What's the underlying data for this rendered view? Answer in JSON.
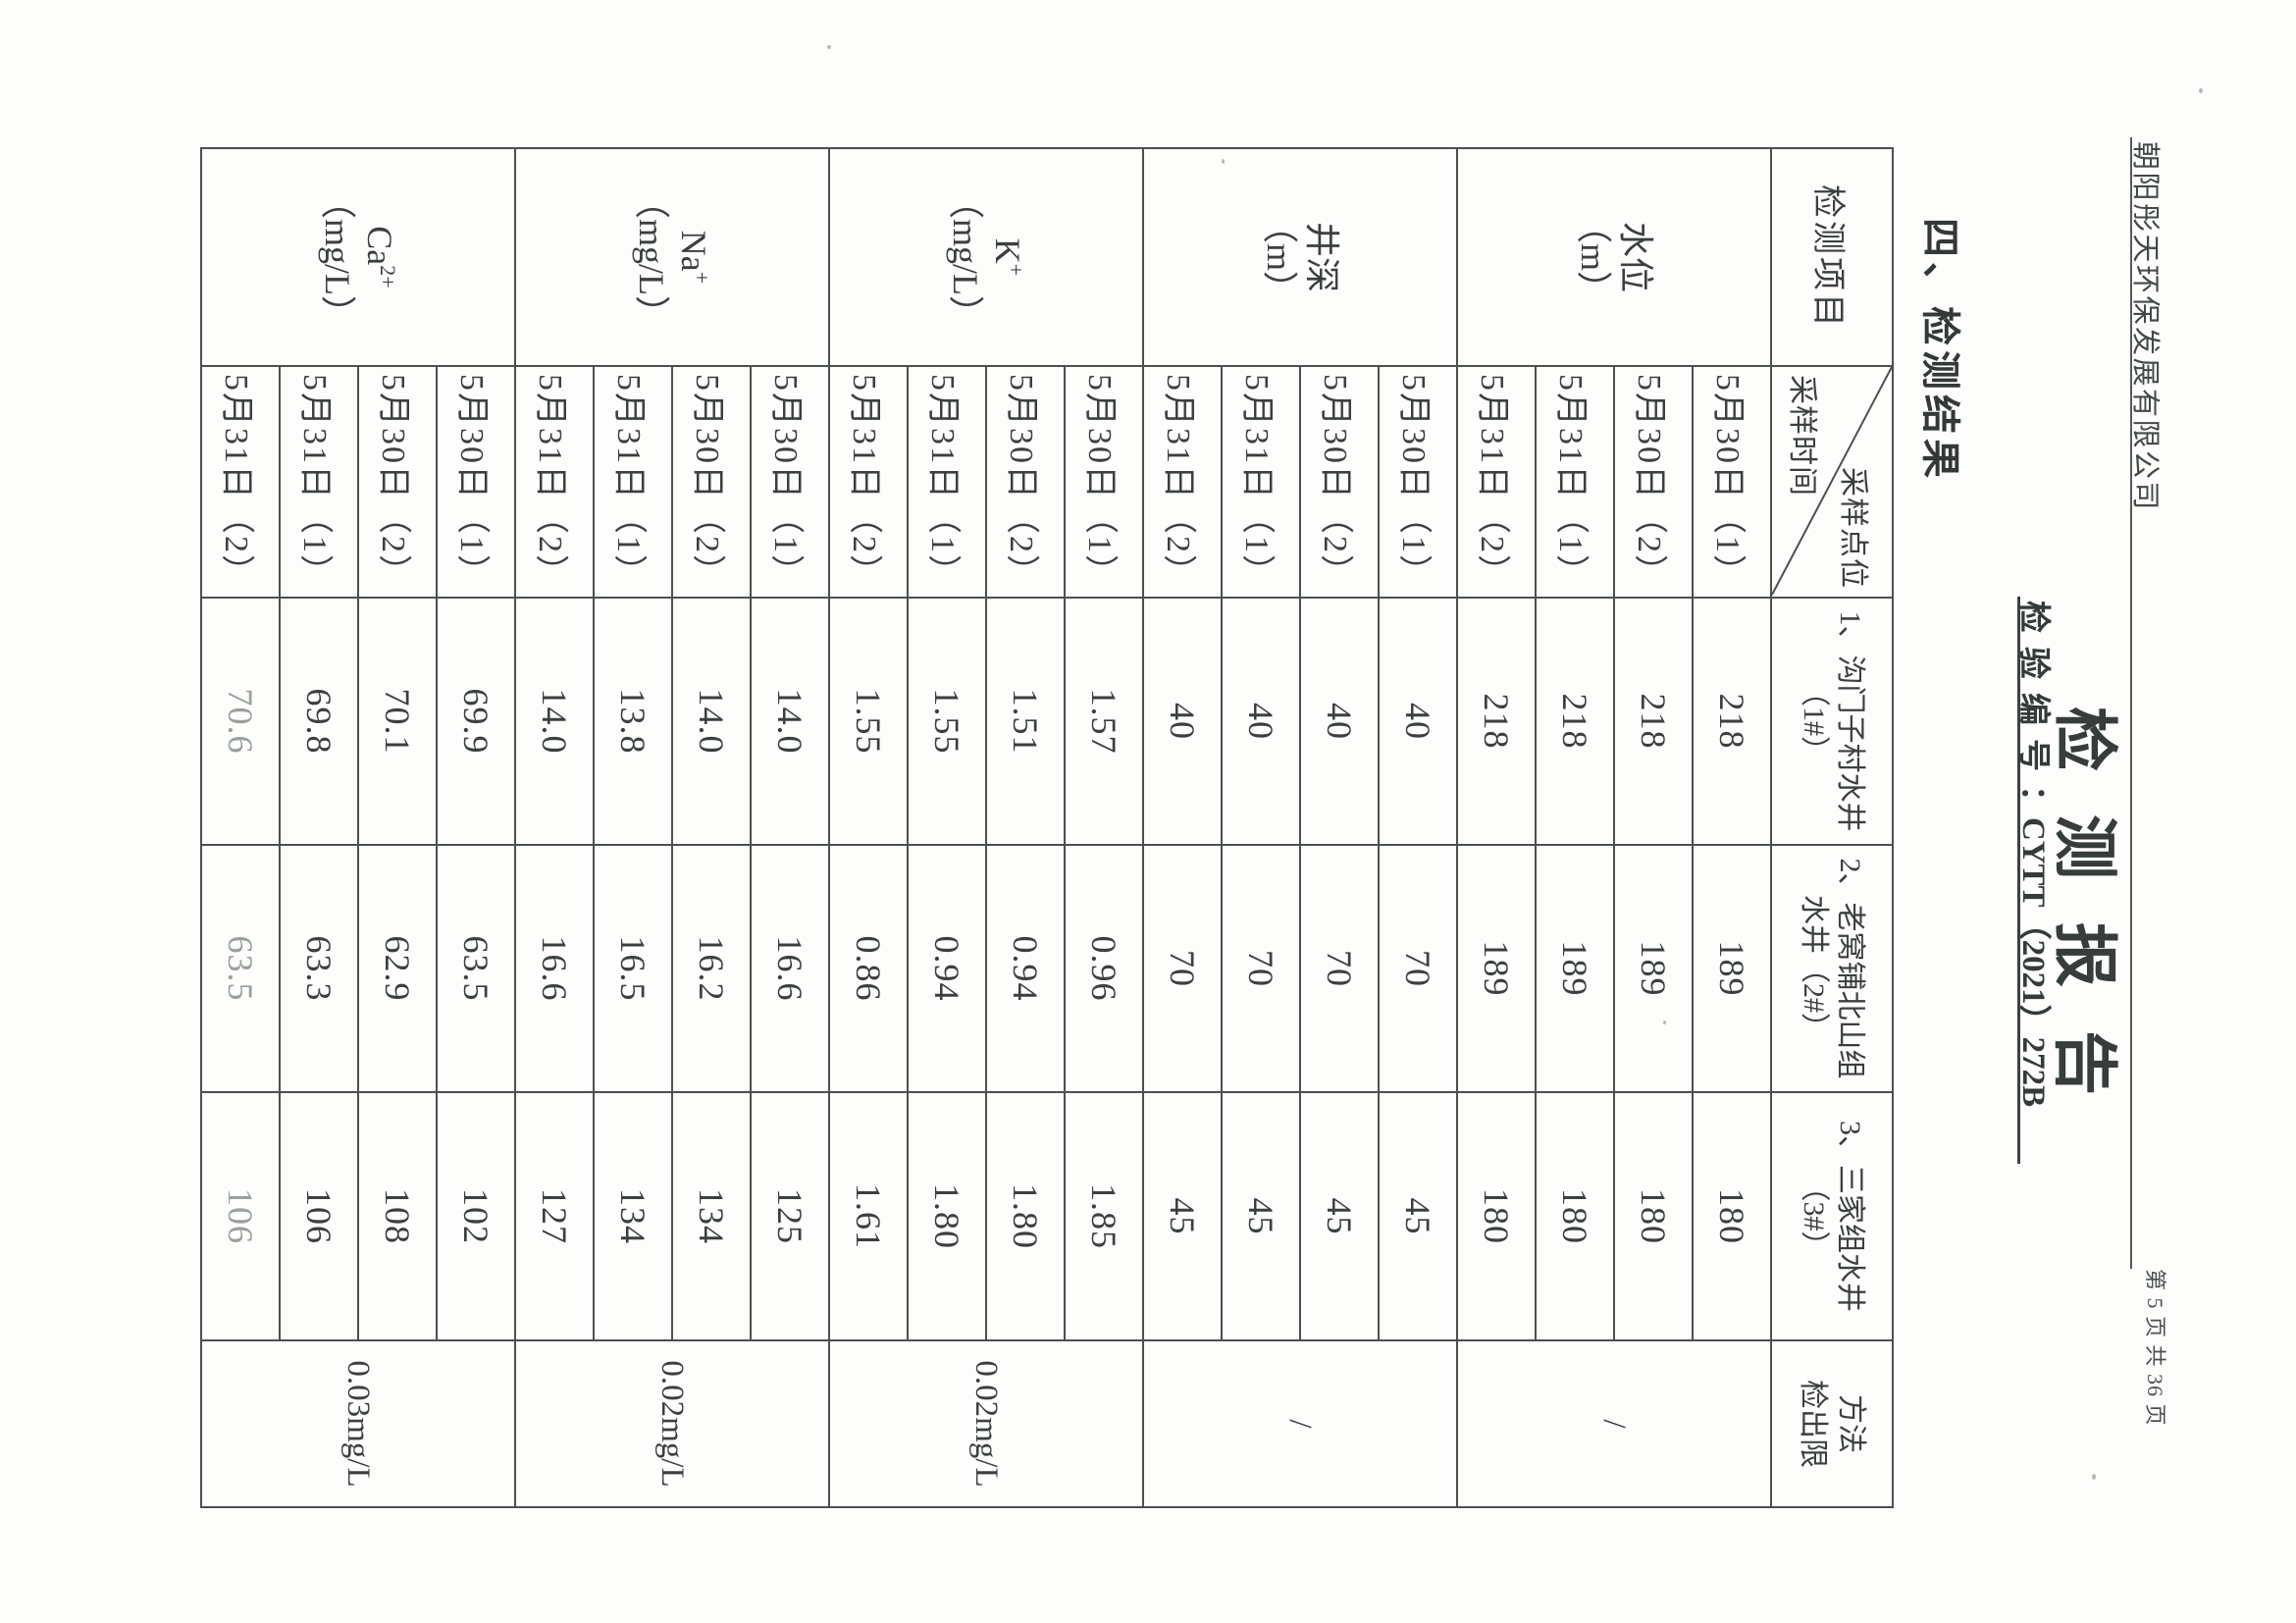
{
  "header": {
    "company": "朝阳彤天环保发展有限公司",
    "page_info": "第 5 页   共 36 页"
  },
  "title": "检测报告",
  "report_no": {
    "label": "检验编号",
    "colon": "：",
    "value": "CYTT（2021）272B"
  },
  "section_heading": "四、检测结果",
  "table": {
    "header": {
      "item_col": "检测项目",
      "corner_top": "采样点位",
      "corner_bottom": "采样时间",
      "site_cols": [
        [
          "1、沟门子村水井",
          "（1#）"
        ],
        [
          "2、老窝铺北山组",
          "水井（2#）"
        ],
        [
          "3、三家组水井",
          "（3#）"
        ]
      ],
      "limit_col": [
        "方法",
        "检出限"
      ]
    },
    "times": [
      "5月30日（1）",
      "5月30日（2）",
      "5月31日（1）",
      "5月31日（2）"
    ],
    "groups": [
      {
        "name": "水位",
        "sup": "",
        "unit": "（m）",
        "values": [
          [
            "218",
            "189",
            "180"
          ],
          [
            "218",
            "189",
            "180"
          ],
          [
            "218",
            "189",
            "180"
          ],
          [
            "218",
            "189",
            "180"
          ]
        ],
        "limit": "/"
      },
      {
        "name": "井深",
        "sup": "",
        "unit": "（m）",
        "values": [
          [
            "40",
            "70",
            "45"
          ],
          [
            "40",
            "70",
            "45"
          ],
          [
            "40",
            "70",
            "45"
          ],
          [
            "40",
            "70",
            "45"
          ]
        ],
        "limit": "/"
      },
      {
        "name": "K",
        "sup": "+",
        "unit": "（mg/L）",
        "values": [
          [
            "1.57",
            "0.96",
            "1.85"
          ],
          [
            "1.51",
            "0.94",
            "1.80"
          ],
          [
            "1.55",
            "0.94",
            "1.80"
          ],
          [
            "1.55",
            "0.86",
            "1.61"
          ]
        ],
        "limit": "0.02mg/L"
      },
      {
        "name": "Na",
        "sup": "+",
        "unit": "（mg/L）",
        "values": [
          [
            "14.0",
            "16.6",
            "125"
          ],
          [
            "14.0",
            "16.2",
            "134"
          ],
          [
            "13.8",
            "16.5",
            "134"
          ],
          [
            "14.0",
            "16.6",
            "127"
          ]
        ],
        "limit": "0.02mg/L"
      },
      {
        "name": "Ca",
        "sup": "2+",
        "unit": "（mg/L）",
        "values": [
          [
            "69.9",
            "63.5",
            "102"
          ],
          [
            "70.1",
            "62.9",
            "108"
          ],
          [
            "69.8",
            "63.3",
            "106"
          ],
          [
            "70.6",
            "63.5",
            "106"
          ]
        ],
        "limit": "0.03mg/L"
      }
    ]
  }
}
